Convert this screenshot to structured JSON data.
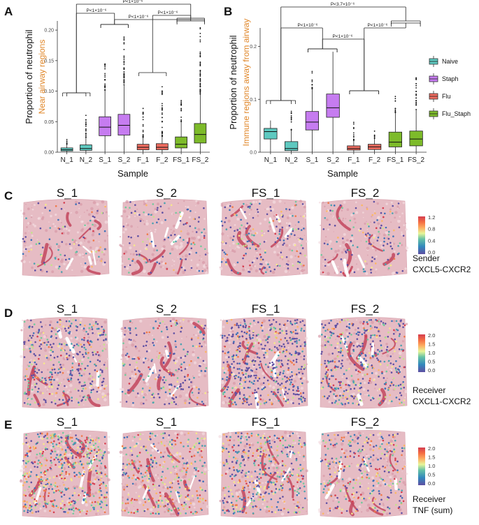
{
  "colors": {
    "Naive": "#5ec9c0",
    "Staph": "#c67cf0",
    "Flu": "#ee6b5f",
    "Flu_Staph": "#7dbb2a",
    "tissue": "#e6bcc4",
    "tissue_dark": "#c2475e"
  },
  "panels": {
    "A": "A",
    "B": "B",
    "C": "C",
    "D": "D",
    "E": "E"
  },
  "chart_data": [
    {
      "type": "box",
      "panel": "A",
      "xlabel": "Sample",
      "ylabel": "Proportion of neutrophil",
      "ylabel_sub": "Near airway regions",
      "ylim": [
        0,
        0.215
      ],
      "yticks": [
        0.0,
        0.05,
        0.1,
        0.15,
        0.2
      ],
      "ytick_labels": [
        "0.00",
        "0.05",
        "0.10",
        "0.15",
        "0.20"
      ],
      "categories": [
        "N_1",
        "N_2",
        "S_1",
        "S_2",
        "F_1",
        "F_2",
        "FS_1",
        "FS_2"
      ],
      "groups": [
        "Naive",
        "Naive",
        "Staph",
        "Staph",
        "Flu",
        "Flu",
        "Flu_Staph",
        "Flu_Staph"
      ],
      "boxes": [
        {
          "q1": 0.002,
          "median": 0.004,
          "q3": 0.007,
          "wlo": 0.0,
          "whi": 0.013,
          "outmax": 0.022
        },
        {
          "q1": 0.003,
          "median": 0.006,
          "q3": 0.012,
          "wlo": 0.0,
          "whi": 0.024,
          "outmax": 0.066
        },
        {
          "q1": 0.027,
          "median": 0.041,
          "q3": 0.058,
          "wlo": 0.0,
          "whi": 0.101,
          "outmax": 0.15
        },
        {
          "q1": 0.028,
          "median": 0.044,
          "q3": 0.062,
          "wlo": 0.0,
          "whi": 0.11,
          "outmax": 0.198
        },
        {
          "q1": 0.004,
          "median": 0.008,
          "q3": 0.013,
          "wlo": 0.0,
          "whi": 0.024,
          "outmax": 0.072
        },
        {
          "q1": 0.004,
          "median": 0.008,
          "q3": 0.014,
          "wlo": 0.0,
          "whi": 0.026,
          "outmax": 0.112
        },
        {
          "q1": 0.007,
          "median": 0.013,
          "q3": 0.025,
          "wlo": 0.0,
          "whi": 0.05,
          "outmax": 0.085
        },
        {
          "q1": 0.015,
          "median": 0.029,
          "q3": 0.047,
          "wlo": 0.0,
          "whi": 0.095,
          "outmax": 0.205
        }
      ],
      "comparisons": [
        {
          "a": 0,
          "b": 1,
          "b2": 2,
          "b3": 3,
          "label": "P<1×10⁻⁶",
          "y": 0.195,
          "pair": [
            [
              0,
              1
            ],
            [
              2,
              3
            ]
          ]
        },
        {
          "label": "P<1×10⁻⁶",
          "y": 0.205,
          "pair": [
            [
              2,
              3
            ],
            [
              6,
              7
            ]
          ]
        },
        {
          "label": "P<1×10⁻⁶",
          "y": 0.226,
          "pair": [
            [
              0,
              1
            ],
            [
              6,
              7
            ]
          ]
        },
        {
          "label": "P<1×10⁻⁶",
          "y": 0.205,
          "pair": [
            [
              4,
              5
            ],
            [
              6,
              7
            ]
          ]
        },
        {
          "label": "",
          "y": 0.088,
          "pair": [
            [
              0,
              1
            ],
            [
              0,
              1
            ]
          ]
        }
      ]
    },
    {
      "type": "box",
      "panel": "B",
      "xlabel": "Sample",
      "ylabel": "Proportion of neutrophil",
      "ylabel_sub": "Immune regions away from airway",
      "ylim": [
        0,
        0.235
      ],
      "yticks": [
        0.0,
        0.1,
        0.2
      ],
      "ytick_labels": [
        "0.0",
        "0.1",
        "0.2"
      ],
      "categories": [
        "N_1",
        "N_2",
        "S_1",
        "S_2",
        "F_1",
        "F_2",
        "FS_1",
        "FS_2"
      ],
      "groups": [
        "Naive",
        "Naive",
        "Staph",
        "Staph",
        "Flu",
        "Flu",
        "Flu_Staph",
        "Flu_Staph"
      ],
      "boxes": [
        {
          "q1": 0.025,
          "median": 0.039,
          "q3": 0.045,
          "wlo": 0.0,
          "whi": 0.06,
          "outmax": 0.0
        },
        {
          "q1": 0.003,
          "median": 0.007,
          "q3": 0.02,
          "wlo": 0.0,
          "whi": 0.042,
          "outmax": 0.08
        },
        {
          "q1": 0.042,
          "median": 0.057,
          "q3": 0.077,
          "wlo": 0.0,
          "whi": 0.12,
          "outmax": 0.153
        },
        {
          "q1": 0.066,
          "median": 0.084,
          "q3": 0.11,
          "wlo": 0.0,
          "whi": 0.19,
          "outmax": 0.0
        },
        {
          "q1": 0.004,
          "median": 0.007,
          "q3": 0.012,
          "wlo": 0.0,
          "whi": 0.022,
          "outmax": 0.058
        },
        {
          "q1": 0.005,
          "median": 0.01,
          "q3": 0.015,
          "wlo": 0.0,
          "whi": 0.026,
          "outmax": 0.04
        },
        {
          "q1": 0.01,
          "median": 0.019,
          "q3": 0.038,
          "wlo": 0.0,
          "whi": 0.075,
          "outmax": 0.11
        },
        {
          "q1": 0.012,
          "median": 0.025,
          "q3": 0.04,
          "wlo": 0.0,
          "whi": 0.08,
          "outmax": 0.142
        }
      ],
      "comparisons": [
        {
          "label": "P<3.7×10⁻⁶",
          "y": 0.26,
          "pair": [
            [
              0,
              1
            ],
            [
              6,
              7
            ]
          ]
        },
        {
          "label": "P<1×10⁻⁶",
          "y": 0.22,
          "pair": [
            [
              0,
              1
            ],
            [
              2,
              3
            ]
          ]
        },
        {
          "label": "P<1×10⁻⁶",
          "y": 0.2,
          "pair": [
            [
              2,
              3
            ],
            [
              4,
              5
            ]
          ]
        },
        {
          "label": "P<1×10⁻⁶",
          "y": 0.22,
          "pair": [
            [
              4,
              5
            ],
            [
              6,
              7
            ]
          ]
        }
      ]
    }
  ],
  "legend": {
    "items": [
      "Naive",
      "Staph",
      "Flu",
      "Flu_Staph"
    ]
  },
  "rows": [
    {
      "panel": "C",
      "samples": [
        "S_1",
        "S_2",
        "FS_1",
        "FS_2"
      ],
      "label_line1": "Sender",
      "label_line2": "CXCL5-CXCR2",
      "colorbar_ticks": [
        "1.2",
        "0.8",
        "0.4",
        "0.0"
      ]
    },
    {
      "panel": "D",
      "samples": [
        "S_1",
        "S_2",
        "FS_1",
        "FS_2"
      ],
      "label_line1": "Receiver",
      "label_line2": "CXCL1-CXCR2",
      "colorbar_ticks": [
        "2.0",
        "1.5",
        "1.0",
        "0.5",
        "0.0"
      ]
    },
    {
      "panel": "E",
      "samples": [
        "S_1",
        "S_1",
        "FS_1",
        "FS_2"
      ],
      "label_line1": "Receiver",
      "label_line2": "TNF (sum)",
      "colorbar_ticks": [
        "2.0",
        "1.5",
        "1.0",
        "0.5",
        "0.0"
      ]
    }
  ]
}
